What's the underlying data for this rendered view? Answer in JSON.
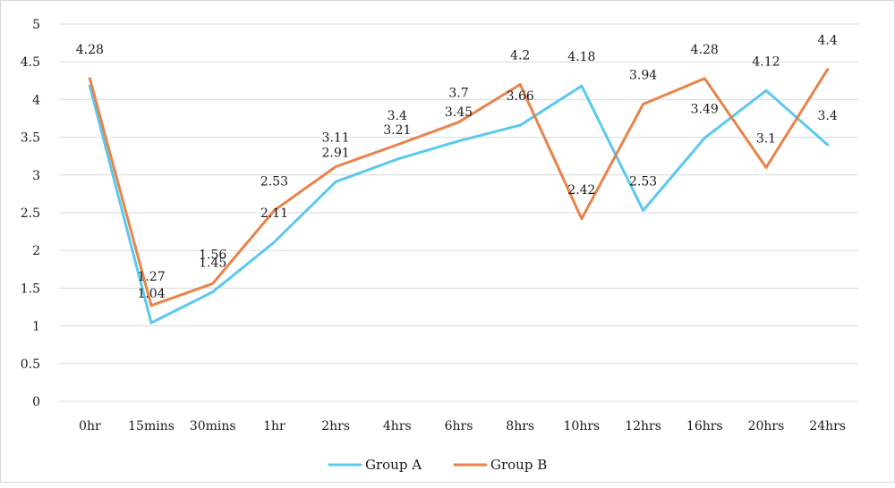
{
  "chart_data": {
    "type": "line",
    "categories": [
      "0hr",
      "15mins",
      "30mins",
      "1hr",
      "2hrs",
      "4hrs",
      "6hrs",
      "8hrs",
      "10hrs",
      "12hrs",
      "16hrs",
      "20hrs",
      "24hrs"
    ],
    "series": [
      {
        "name": "Group A",
        "color": "#5BC8EE",
        "values": [
          4.18,
          1.04,
          1.45,
          2.11,
          2.91,
          3.21,
          3.45,
          3.66,
          4.18,
          2.53,
          3.49,
          4.12,
          3.4
        ],
        "labels": [
          "",
          "1.04",
          "1.45",
          "2.11",
          "2.91",
          "3.21",
          "3.45",
          "3.66",
          "4.18",
          "2.53",
          "3.49",
          "4.12",
          "3.4"
        ]
      },
      {
        "name": "Group B",
        "color": "#E8834A",
        "values": [
          4.28,
          1.27,
          1.56,
          2.53,
          3.11,
          3.4,
          3.7,
          4.2,
          2.42,
          3.94,
          4.28,
          3.1,
          4.4
        ],
        "labels": [
          "4.28",
          "1.27",
          "1.56",
          "2.53",
          "3.11",
          "3.4",
          "3.7",
          "4.2",
          "2.42",
          "3.94",
          "4.28",
          "3.1",
          "4.4"
        ]
      }
    ],
    "title": "",
    "xlabel": "",
    "ylabel": "",
    "ylim": [
      0,
      5
    ],
    "yticks": [
      "0",
      "0.5",
      "1",
      "1.5",
      "2",
      "2.5",
      "3",
      "3.5",
      "4",
      "4.5",
      "5"
    ],
    "grid": true,
    "legend_position": "bottom"
  }
}
